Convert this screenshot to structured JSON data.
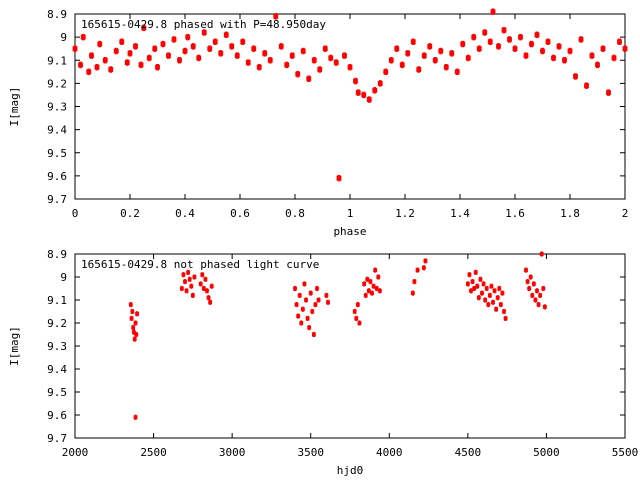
{
  "chart_data": [
    {
      "type": "scatter",
      "title": "165615-0429.8 phased with P=48.950day",
      "xlabel": "phase",
      "ylabel": "I[mag]",
      "xlim": [
        0,
        2
      ],
      "ylim": [
        9.7,
        8.9
      ],
      "y_inverted": true,
      "x_ticks": [
        "0",
        "0.2",
        "0.4",
        "0.6",
        "0.8",
        "1",
        "1.2",
        "1.4",
        "1.6",
        "1.8",
        "2"
      ],
      "y_ticks": [
        "8.9",
        "9",
        "9.1",
        "9.2",
        "9.3",
        "9.4",
        "9.5",
        "9.6",
        "9.7"
      ],
      "grid": false,
      "marker_color": "#ff0000",
      "points": [
        [
          0.0,
          9.05
        ],
        [
          0.02,
          9.12
        ],
        [
          0.03,
          9.0
        ],
        [
          0.05,
          9.15
        ],
        [
          0.06,
          9.08
        ],
        [
          0.08,
          9.13
        ],
        [
          0.09,
          9.03
        ],
        [
          0.11,
          9.1
        ],
        [
          0.13,
          9.14
        ],
        [
          0.15,
          9.06
        ],
        [
          0.17,
          9.02
        ],
        [
          0.19,
          9.11
        ],
        [
          0.2,
          9.07
        ],
        [
          0.22,
          9.04
        ],
        [
          0.24,
          9.12
        ],
        [
          0.25,
          8.96
        ],
        [
          0.27,
          9.09
        ],
        [
          0.29,
          9.05
        ],
        [
          0.3,
          9.13
        ],
        [
          0.32,
          9.03
        ],
        [
          0.34,
          9.08
        ],
        [
          0.36,
          9.01
        ],
        [
          0.38,
          9.1
        ],
        [
          0.4,
          9.06
        ],
        [
          0.41,
          9.0
        ],
        [
          0.43,
          9.04
        ],
        [
          0.45,
          9.09
        ],
        [
          0.47,
          8.98
        ],
        [
          0.49,
          9.05
        ],
        [
          0.51,
          9.02
        ],
        [
          0.53,
          9.07
        ],
        [
          0.55,
          8.99
        ],
        [
          0.57,
          9.04
        ],
        [
          0.59,
          9.08
        ],
        [
          0.61,
          9.02
        ],
        [
          0.63,
          9.11
        ],
        [
          0.65,
          9.05
        ],
        [
          0.67,
          9.13
        ],
        [
          0.69,
          9.07
        ],
        [
          0.71,
          9.1
        ],
        [
          0.73,
          8.91
        ],
        [
          0.75,
          9.04
        ],
        [
          0.77,
          9.12
        ],
        [
          0.79,
          9.08
        ],
        [
          0.81,
          9.16
        ],
        [
          0.83,
          9.06
        ],
        [
          0.85,
          9.18
        ],
        [
          0.87,
          9.1
        ],
        [
          0.89,
          9.14
        ],
        [
          0.91,
          9.05
        ],
        [
          0.93,
          9.09
        ],
        [
          0.95,
          9.11
        ],
        [
          0.96,
          9.61
        ],
        [
          0.98,
          9.08
        ],
        [
          1.0,
          9.13
        ],
        [
          1.02,
          9.19
        ],
        [
          1.03,
          9.24
        ],
        [
          1.05,
          9.25
        ],
        [
          1.07,
          9.27
        ],
        [
          1.09,
          9.23
        ],
        [
          1.11,
          9.2
        ],
        [
          1.13,
          9.15
        ],
        [
          1.15,
          9.1
        ],
        [
          1.17,
          9.05
        ],
        [
          1.19,
          9.12
        ],
        [
          1.21,
          9.07
        ],
        [
          1.23,
          9.02
        ],
        [
          1.25,
          9.14
        ],
        [
          1.27,
          9.08
        ],
        [
          1.29,
          9.04
        ],
        [
          1.31,
          9.1
        ],
        [
          1.33,
          9.06
        ],
        [
          1.35,
          9.13
        ],
        [
          1.37,
          9.07
        ],
        [
          1.39,
          9.15
        ],
        [
          1.41,
          9.03
        ],
        [
          1.43,
          9.09
        ],
        [
          1.45,
          9.0
        ],
        [
          1.47,
          9.05
        ],
        [
          1.49,
          8.98
        ],
        [
          1.51,
          9.02
        ],
        [
          1.52,
          8.89
        ],
        [
          1.54,
          9.04
        ],
        [
          1.56,
          8.97
        ],
        [
          1.58,
          9.01
        ],
        [
          1.6,
          9.05
        ],
        [
          1.62,
          9.0
        ],
        [
          1.64,
          9.08
        ],
        [
          1.66,
          9.03
        ],
        [
          1.68,
          8.99
        ],
        [
          1.7,
          9.06
        ],
        [
          1.72,
          9.02
        ],
        [
          1.74,
          9.09
        ],
        [
          1.76,
          9.04
        ],
        [
          1.78,
          9.1
        ],
        [
          1.8,
          9.06
        ],
        [
          1.82,
          9.17
        ],
        [
          1.84,
          9.01
        ],
        [
          1.86,
          9.21
        ],
        [
          1.88,
          9.08
        ],
        [
          1.9,
          9.12
        ],
        [
          1.92,
          9.05
        ],
        [
          1.94,
          9.24
        ],
        [
          1.96,
          9.09
        ],
        [
          1.98,
          9.02
        ],
        [
          2.0,
          9.05
        ]
      ]
    },
    {
      "type": "scatter",
      "title": "165615-0429.8 not phased light curve",
      "xlabel": "hjd0",
      "ylabel": "I[mag]",
      "xlim": [
        2000,
        5500
      ],
      "ylim": [
        9.7,
        8.9
      ],
      "y_inverted": true,
      "x_ticks": [
        "2000",
        "2500",
        "3000",
        "3500",
        "4000",
        "4500",
        "5000",
        "5500"
      ],
      "y_ticks": [
        "8.9",
        "9",
        "9.1",
        "9.2",
        "9.3",
        "9.4",
        "9.5",
        "9.6",
        "9.7"
      ],
      "grid": false,
      "marker_color": "#ff0000",
      "points": [
        [
          2355,
          9.12
        ],
        [
          2360,
          9.18
        ],
        [
          2365,
          9.15
        ],
        [
          2370,
          9.22
        ],
        [
          2375,
          9.24
        ],
        [
          2380,
          9.27
        ],
        [
          2385,
          9.2
        ],
        [
          2390,
          9.25
        ],
        [
          2385,
          9.61
        ],
        [
          2395,
          9.16
        ],
        [
          2680,
          9.05
        ],
        [
          2690,
          8.99
        ],
        [
          2700,
          9.02
        ],
        [
          2710,
          9.06
        ],
        [
          2720,
          8.98
        ],
        [
          2730,
          9.01
        ],
        [
          2740,
          9.04
        ],
        [
          2750,
          9.08
        ],
        [
          2760,
          9.0
        ],
        [
          2800,
          9.03
        ],
        [
          2810,
          8.99
        ],
        [
          2820,
          9.05
        ],
        [
          2830,
          9.01
        ],
        [
          2840,
          9.06
        ],
        [
          2850,
          9.09
        ],
        [
          2860,
          9.11
        ],
        [
          2870,
          9.04
        ],
        [
          3400,
          9.05
        ],
        [
          3410,
          9.12
        ],
        [
          3420,
          9.17
        ],
        [
          3430,
          9.08
        ],
        [
          3440,
          9.2
        ],
        [
          3450,
          9.14
        ],
        [
          3460,
          9.03
        ],
        [
          3470,
          9.1
        ],
        [
          3480,
          9.18
        ],
        [
          3490,
          9.22
        ],
        [
          3500,
          9.07
        ],
        [
          3510,
          9.15
        ],
        [
          3520,
          9.25
        ],
        [
          3530,
          9.12
        ],
        [
          3540,
          9.05
        ],
        [
          3550,
          9.1
        ],
        [
          3600,
          9.08
        ],
        [
          3610,
          9.11
        ],
        [
          3780,
          9.15
        ],
        [
          3790,
          9.18
        ],
        [
          3800,
          9.12
        ],
        [
          3810,
          9.2
        ],
        [
          3840,
          9.03
        ],
        [
          3850,
          9.08
        ],
        [
          3860,
          9.01
        ],
        [
          3870,
          9.06
        ],
        [
          3880,
          9.02
        ],
        [
          3890,
          9.07
        ],
        [
          3900,
          9.04
        ],
        [
          3910,
          8.97
        ],
        [
          3920,
          9.05
        ],
        [
          3930,
          9.0
        ],
        [
          3940,
          9.06
        ],
        [
          4150,
          9.07
        ],
        [
          4160,
          9.02
        ],
        [
          4180,
          8.97
        ],
        [
          4220,
          8.96
        ],
        [
          4230,
          8.93
        ],
        [
          4500,
          9.03
        ],
        [
          4510,
          8.99
        ],
        [
          4520,
          9.06
        ],
        [
          4530,
          9.02
        ],
        [
          4540,
          9.05
        ],
        [
          4550,
          8.98
        ],
        [
          4560,
          9.04
        ],
        [
          4570,
          9.09
        ],
        [
          4580,
          9.01
        ],
        [
          4590,
          9.07
        ],
        [
          4600,
          9.03
        ],
        [
          4610,
          9.1
        ],
        [
          4620,
          9.05
        ],
        [
          4630,
          9.12
        ],
        [
          4640,
          9.08
        ],
        [
          4650,
          9.04
        ],
        [
          4660,
          9.11
        ],
        [
          4670,
          9.06
        ],
        [
          4680,
          9.14
        ],
        [
          4690,
          9.09
        ],
        [
          4700,
          9.05
        ],
        [
          4710,
          9.12
        ],
        [
          4720,
          9.07
        ],
        [
          4730,
          9.15
        ],
        [
          4740,
          9.18
        ],
        [
          4870,
          8.97
        ],
        [
          4880,
          9.02
        ],
        [
          4890,
          9.05
        ],
        [
          4900,
          9.0
        ],
        [
          4910,
          9.08
        ],
        [
          4920,
          9.03
        ],
        [
          4930,
          9.1
        ],
        [
          4940,
          9.06
        ],
        [
          4950,
          9.12
        ],
        [
          4960,
          9.08
        ],
        [
          4970,
          8.9
        ],
        [
          4980,
          9.05
        ],
        [
          4990,
          9.13
        ]
      ]
    }
  ]
}
